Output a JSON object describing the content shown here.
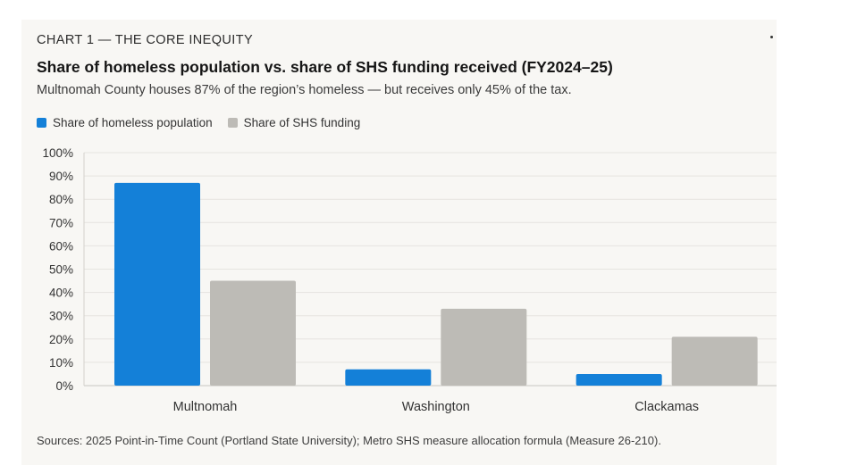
{
  "header": {
    "kicker": "CHART 1 — THE CORE INEQUITY",
    "title": "Share of homeless population vs. share of SHS funding received (FY2024–25)",
    "subtitle": "Multnomah County houses 87% of the region’s homeless — but receives only 45% of the tax."
  },
  "footer": {
    "source": "Sources: 2025 Point-in-Time Count (Portland State University); Metro SHS measure allocation formula (Measure 26-210)."
  },
  "chart_data": {
    "type": "bar",
    "title": "Share of homeless population vs. share of SHS funding received (FY2024–25)",
    "categories": [
      "Multnomah",
      "Washington",
      "Clackamas"
    ],
    "series": [
      {
        "name": "Share of homeless population",
        "values": [
          87,
          7,
          5
        ],
        "color": "#1480d8"
      },
      {
        "name": "Share of SHS funding",
        "values": [
          45,
          33,
          21
        ],
        "color": "#bdbbb6"
      }
    ],
    "ylim": [
      0,
      100
    ],
    "yticks": [
      "0%",
      "10%",
      "20%",
      "30%",
      "40%",
      "50%",
      "60%",
      "70%",
      "80%",
      "90%",
      "100%"
    ],
    "xlabel": "",
    "ylabel": "",
    "grid": true,
    "legend": "top-left"
  }
}
